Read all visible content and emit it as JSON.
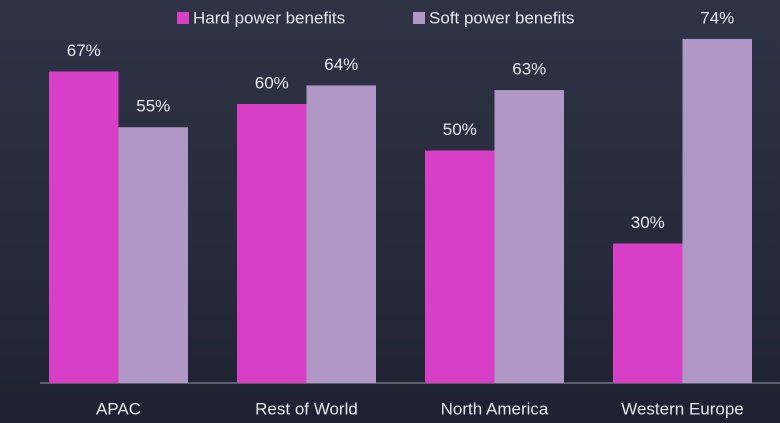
{
  "chart_data": {
    "type": "bar",
    "categories": [
      "APAC",
      "Rest of World",
      "North America",
      "Western Europe"
    ],
    "series": [
      {
        "name": "Hard power benefits",
        "color": "#d63fc6",
        "values": [
          67,
          60,
          50,
          30
        ],
        "value_labels": [
          "67%",
          "60%",
          "50%",
          "30%"
        ]
      },
      {
        "name": "Soft power benefits",
        "color": "#b197c6",
        "values": [
          55,
          64,
          63,
          74
        ],
        "value_labels": [
          "55%",
          "64%",
          "63%",
          "74%"
        ]
      }
    ]
  }
}
